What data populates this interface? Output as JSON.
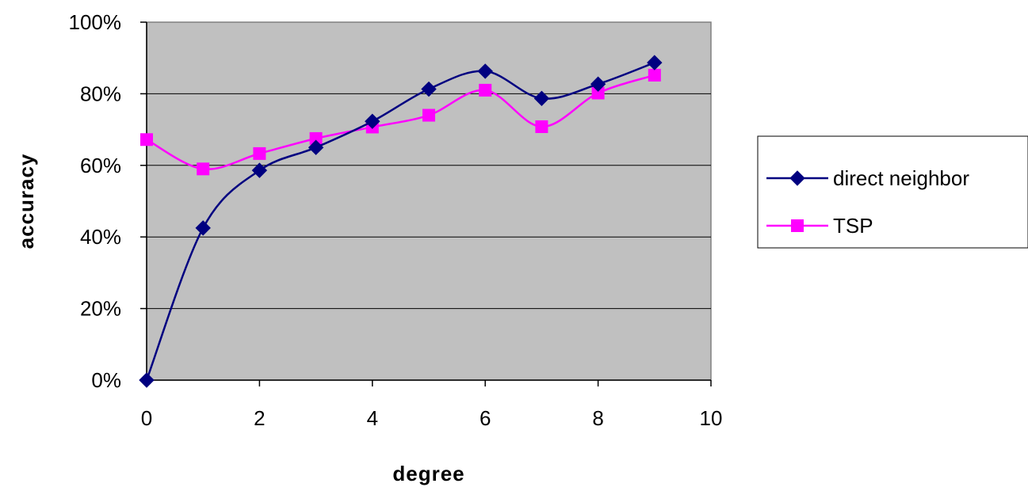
{
  "chart_data": {
    "type": "line",
    "title": "",
    "xlabel": "degree",
    "ylabel": "accuracy",
    "xlim": [
      0,
      10
    ],
    "ylim": [
      0,
      100
    ],
    "x_ticks": [
      "0",
      "2",
      "4",
      "6",
      "8",
      "10"
    ],
    "y_ticks": [
      "0%",
      "20%",
      "40%",
      "60%",
      "80%",
      "100%"
    ],
    "grid": "horizontal",
    "legend_position": "right",
    "plot_background": "#c0c0c0",
    "smoothed": true,
    "series": [
      {
        "name": "direct neighbor",
        "color": "#000080",
        "marker": "diamond",
        "x": [
          0,
          1,
          2,
          3,
          4,
          5,
          6,
          7,
          8,
          9
        ],
        "y": [
          0,
          42.5,
          58.6,
          65,
          72.3,
          81.3,
          86.3,
          78.7,
          82.7,
          88.7
        ]
      },
      {
        "name": "TSP",
        "color": "#ff00ff",
        "marker": "square",
        "x": [
          0,
          1,
          2,
          3,
          4,
          5,
          6,
          7,
          8,
          9
        ],
        "y": [
          67.2,
          59,
          63.3,
          67.5,
          70.7,
          74,
          81,
          70.8,
          80.2,
          85.2
        ]
      }
    ]
  }
}
